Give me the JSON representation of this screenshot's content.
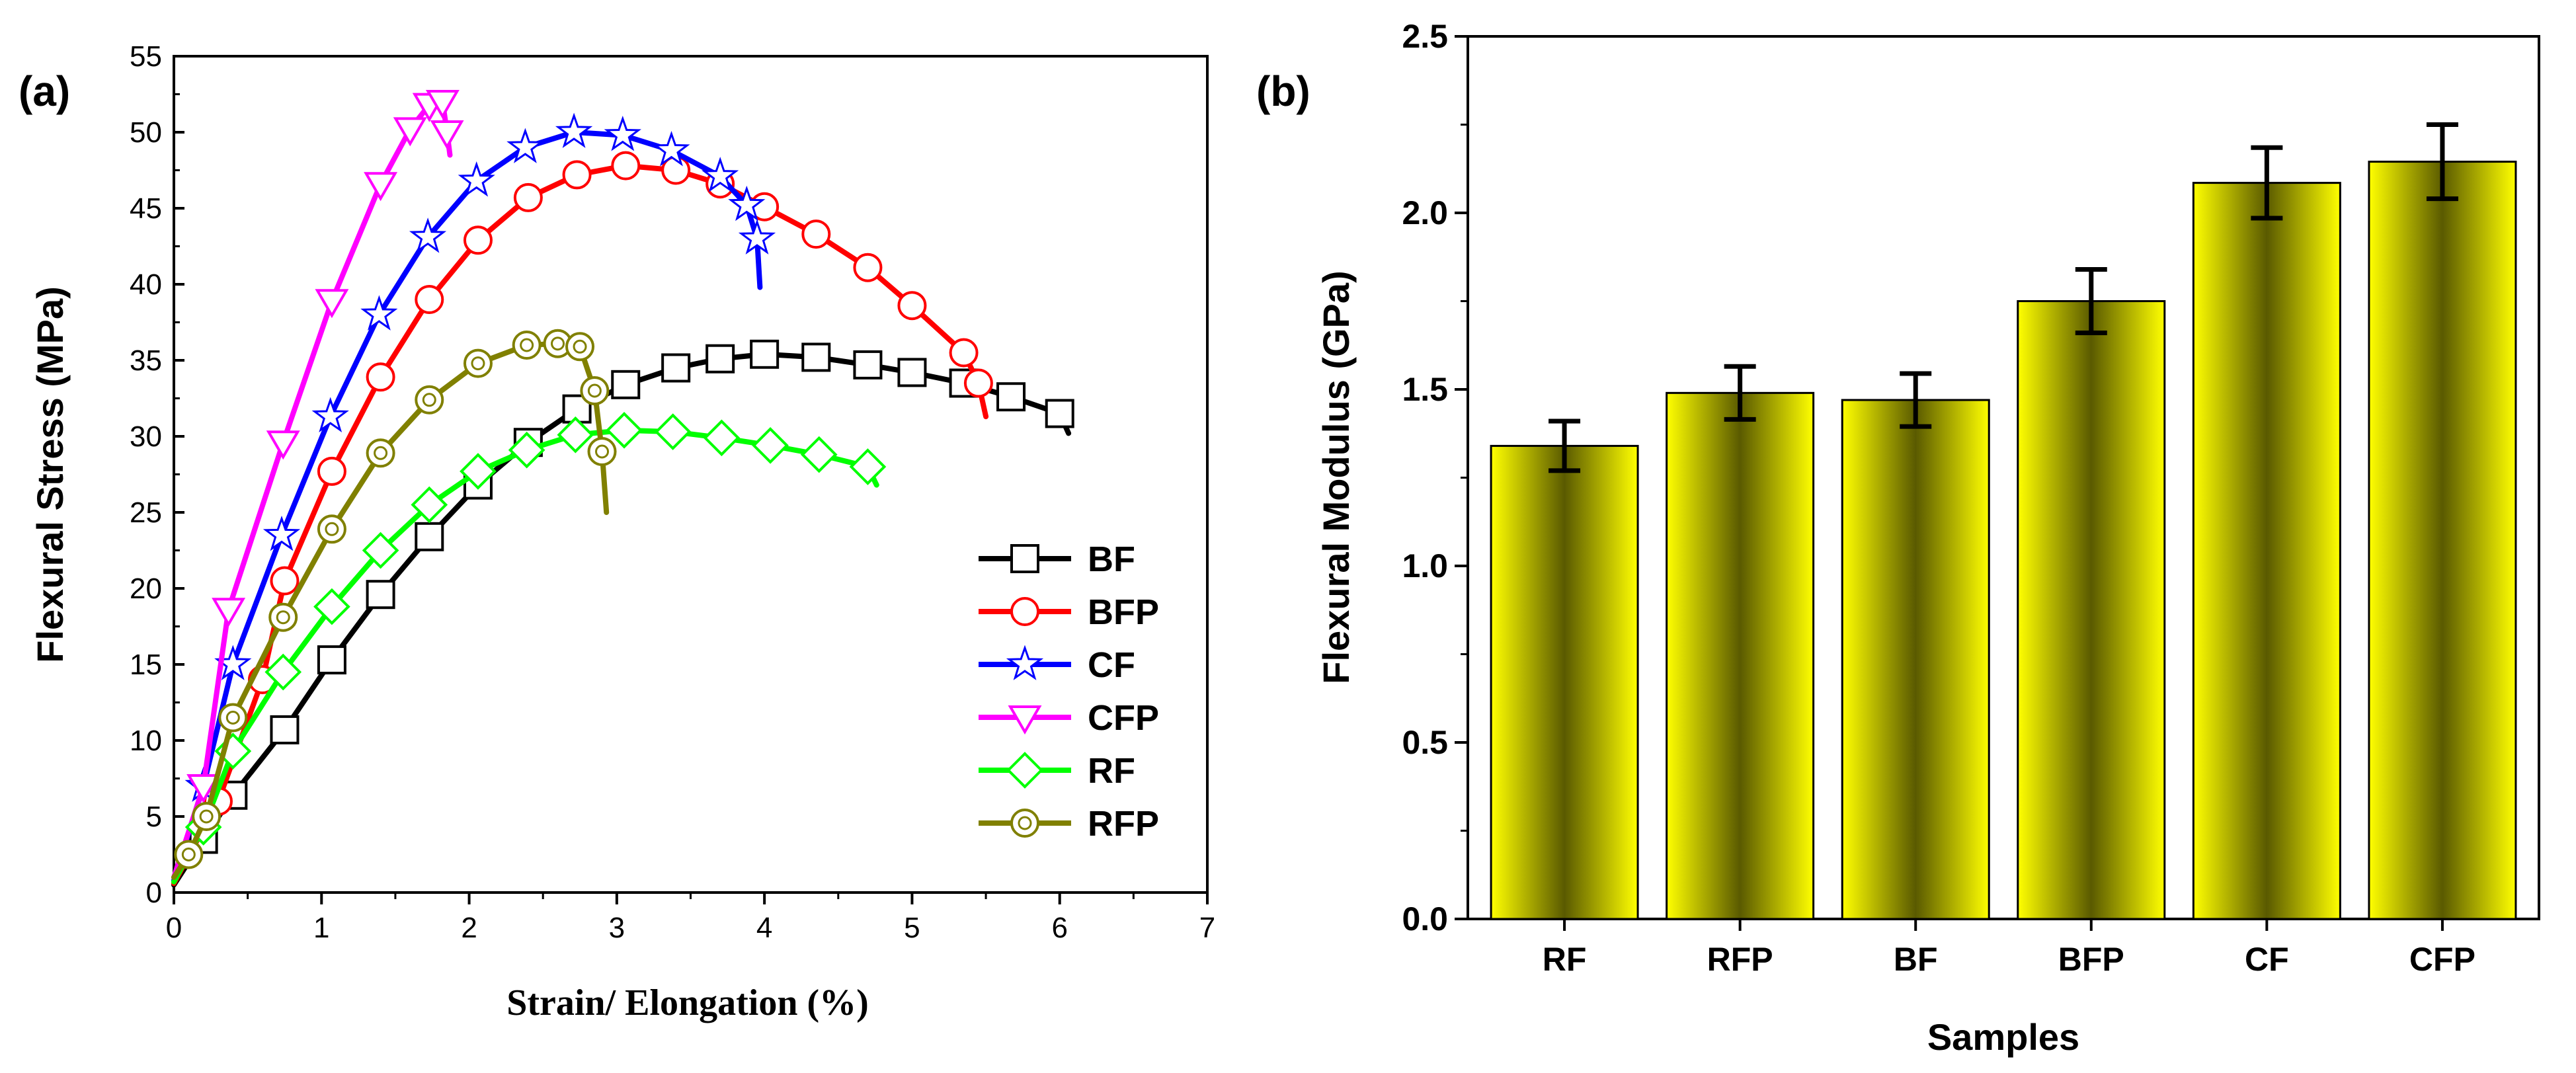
{
  "chart_data": [
    {
      "panel_label": "(a)",
      "type": "line",
      "xlabel": "Strain/ Elongation (%)",
      "ylabel": "Flexural Stress (MPa)",
      "xlim": [
        0,
        7
      ],
      "ylim": [
        0,
        55
      ],
      "xticks": [
        "0",
        "1",
        "2",
        "3",
        "4",
        "5",
        "6",
        "7"
      ],
      "yticks": [
        "0",
        "5",
        "10",
        "15",
        "20",
        "25",
        "30",
        "35",
        "40",
        "45",
        "50",
        "55"
      ],
      "legend_position": "bottom-right",
      "series": [
        {
          "name": "BF",
          "color": "#000000",
          "marker": "square",
          "points": [
            [
              0,
              0.5
            ],
            [
              0.2,
              3.5
            ],
            [
              0.4,
              6.4
            ],
            [
              0.75,
              10.7
            ],
            [
              1.07,
              15.3
            ],
            [
              1.4,
              19.6
            ],
            [
              1.73,
              23.4
            ],
            [
              2.06,
              26.8
            ],
            [
              2.4,
              29.6
            ],
            [
              2.73,
              31.8
            ],
            [
              3.06,
              33.4
            ],
            [
              3.4,
              34.5
            ],
            [
              3.7,
              35.1
            ],
            [
              4.0,
              35.4
            ],
            [
              4.35,
              35.2
            ],
            [
              4.7,
              34.7
            ],
            [
              5.0,
              34.2
            ],
            [
              5.35,
              33.5
            ],
            [
              5.67,
              32.6
            ],
            [
              6.0,
              31.5
            ],
            [
              6.06,
              30.2
            ]
          ]
        },
        {
          "name": "BFP",
          "color": "#ff0000",
          "marker": "circle",
          "points": [
            [
              0,
              0.6
            ],
            [
              0.3,
              6
            ],
            [
              0.6,
              14
            ],
            [
              0.75,
              20.5
            ],
            [
              1.07,
              27.7
            ],
            [
              1.4,
              33.9
            ],
            [
              1.73,
              39.0
            ],
            [
              2.06,
              42.9
            ],
            [
              2.4,
              45.7
            ],
            [
              2.73,
              47.2
            ],
            [
              3.06,
              47.8
            ],
            [
              3.4,
              47.5
            ],
            [
              3.7,
              46.6
            ],
            [
              4.0,
              45.1
            ],
            [
              4.35,
              43.3
            ],
            [
              4.7,
              41.1
            ],
            [
              5.0,
              38.6
            ],
            [
              5.35,
              35.5
            ],
            [
              5.45,
              33.5
            ],
            [
              5.5,
              31.3
            ]
          ]
        },
        {
          "name": "CF",
          "color": "#0000ff",
          "marker": "star",
          "points": [
            [
              0,
              0.8
            ],
            [
              0.2,
              7
            ],
            [
              0.4,
              15
            ],
            [
              0.73,
              23.5
            ],
            [
              1.06,
              31.3
            ],
            [
              1.39,
              38.0
            ],
            [
              1.72,
              43.1
            ],
            [
              2.05,
              46.8
            ],
            [
              2.38,
              49.0
            ],
            [
              2.71,
              50.0
            ],
            [
              3.04,
              49.8
            ],
            [
              3.37,
              48.8
            ],
            [
              3.7,
              47.1
            ],
            [
              3.88,
              45.2
            ],
            [
              3.95,
              43
            ],
            [
              3.97,
              39.8
            ]
          ]
        },
        {
          "name": "CFP",
          "color": "#ff00ff",
          "marker": "triangle-down",
          "points": [
            [
              0,
              1
            ],
            [
              0.2,
              7
            ],
            [
              0.37,
              18.6
            ],
            [
              0.74,
              29.6
            ],
            [
              1.07,
              38.9
            ],
            [
              1.4,
              46.6
            ],
            [
              1.6,
              50.2
            ],
            [
              1.73,
              51.8
            ],
            [
              1.82,
              52.0
            ],
            [
              1.85,
              50
            ],
            [
              1.87,
              48.5
            ]
          ]
        },
        {
          "name": "RF",
          "color": "#00ff00",
          "marker": "diamond",
          "points": [
            [
              0,
              0.7
            ],
            [
              0.2,
              4.3
            ],
            [
              0.4,
              9.3
            ],
            [
              0.74,
              14.5
            ],
            [
              1.07,
              18.8
            ],
            [
              1.4,
              22.5
            ],
            [
              1.73,
              25.5
            ],
            [
              2.06,
              27.7
            ],
            [
              2.39,
              29.1
            ],
            [
              2.72,
              30.1
            ],
            [
              3.05,
              30.4
            ],
            [
              3.38,
              30.3
            ],
            [
              3.71,
              29.9
            ],
            [
              4.04,
              29.4
            ],
            [
              4.37,
              28.8
            ],
            [
              4.7,
              28.0
            ],
            [
              4.76,
              26.8
            ]
          ]
        },
        {
          "name": "RFP",
          "color": "#808000",
          "marker": "circle-dot",
          "points": [
            [
              0,
              1
            ],
            [
              0.1,
              2.5
            ],
            [
              0.22,
              5
            ],
            [
              0.4,
              11.5
            ],
            [
              0.74,
              18.1
            ],
            [
              1.07,
              23.9
            ],
            [
              1.4,
              28.9
            ],
            [
              1.73,
              32.4
            ],
            [
              2.06,
              34.8
            ],
            [
              2.39,
              36.0
            ],
            [
              2.6,
              36.1
            ],
            [
              2.75,
              35.9
            ],
            [
              2.85,
              33
            ],
            [
              2.9,
              29
            ],
            [
              2.93,
              25
            ]
          ]
        }
      ]
    },
    {
      "panel_label": "(b)",
      "type": "bar",
      "xlabel": "Samples",
      "ylabel": "Flexural Modulus (GPa)",
      "ylim": [
        0,
        2.5
      ],
      "yticks": [
        "0.0",
        "0.5",
        "1.0",
        "1.5",
        "2.0",
        "2.5"
      ],
      "categories": [
        "RF",
        "RFP",
        "BF",
        "BFP",
        "CF",
        "CFP"
      ],
      "values": [
        1.34,
        1.49,
        1.47,
        1.75,
        2.085,
        2.145
      ],
      "errors": [
        0.07,
        0.075,
        0.075,
        0.09,
        0.1,
        0.105
      ],
      "bar_color": "#ffff00",
      "bar_shade": "#5a5a00"
    }
  ]
}
